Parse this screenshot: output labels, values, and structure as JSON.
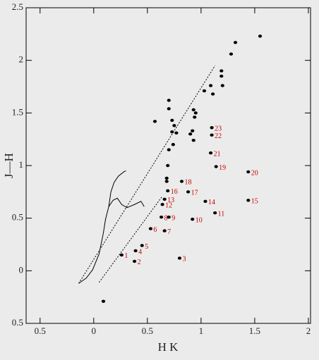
{
  "chart_data": {
    "type": "scatter",
    "x_label": "H K",
    "y_label": "J—H",
    "xlim": [
      -0.63,
      2.02
    ],
    "ylim": [
      -0.5,
      2.5
    ],
    "xticks": [
      {
        "value": -0.5,
        "label": "0.5"
      },
      0,
      0.5,
      1,
      1.5,
      2
    ],
    "yticks": [
      {
        "value": -0.5,
        "label": "0.5"
      },
      0,
      0.5,
      1,
      1.5,
      2,
      2.5
    ],
    "series": [
      {
        "color": "#000000",
        "label_color": "#cc0000",
        "labels": [
          "1",
          "2",
          "3",
          "4",
          "5",
          "6",
          "7",
          "8",
          "9",
          "10",
          "11",
          "12",
          "13",
          "14",
          "15",
          "16",
          "17",
          "18",
          "19",
          "20",
          "21",
          "22",
          "23"
        ],
        "x": [
          0.26,
          0.38,
          0.8,
          0.39,
          0.45,
          0.53,
          0.66,
          0.63,
          0.7,
          0.92,
          1.13,
          0.64,
          0.66,
          1.04,
          1.44,
          0.69,
          0.88,
          0.82,
          1.14,
          1.44,
          1.09,
          1.1,
          1.1
        ],
        "values": [
          0.15,
          0.09,
          0.12,
          0.19,
          0.24,
          0.4,
          0.38,
          0.51,
          0.51,
          0.49,
          0.55,
          0.63,
          0.68,
          0.66,
          0.67,
          0.76,
          0.75,
          0.85,
          0.99,
          0.94,
          1.12,
          1.29,
          1.36
        ]
      },
      {
        "color": "#000000",
        "x": [
          0.09,
          0.57,
          0.7,
          0.7,
          0.73,
          0.75,
          0.73,
          0.77,
          0.68,
          0.68,
          0.69,
          0.7,
          0.74,
          0.9,
          0.92,
          0.93,
          0.93,
          0.95,
          0.94,
          1.03,
          1.09,
          1.11,
          1.19,
          1.19,
          1.2,
          1.28,
          1.32,
          1.55
        ],
        "values": [
          -0.29,
          1.42,
          1.62,
          1.54,
          1.43,
          1.38,
          1.32,
          1.31,
          0.88,
          0.85,
          1.0,
          1.15,
          1.2,
          1.3,
          1.33,
          1.24,
          1.53,
          1.5,
          1.46,
          1.71,
          1.76,
          1.68,
          1.9,
          1.85,
          1.76,
          2.06,
          2.17,
          2.23
        ]
      }
    ],
    "lines": [
      {
        "dash": true,
        "x": [
          -0.14,
          1.13
        ],
        "values": [
          -0.12,
          1.95
        ]
      },
      {
        "dash": true,
        "x": [
          0.05,
          0.64
        ],
        "values": [
          -0.11,
          0.71
        ]
      },
      {
        "dash": false,
        "x": [
          -0.14,
          -0.07,
          -0.01,
          0.05,
          0.09,
          0.11,
          0.14,
          0.16,
          0.19,
          0.23,
          0.28,
          0.3
        ],
        "values": [
          -0.12,
          -0.07,
          0.01,
          0.16,
          0.36,
          0.49,
          0.61,
          0.75,
          0.84,
          0.9,
          0.94,
          0.95
        ]
      },
      {
        "dash": false,
        "x": [
          0.14,
          0.18,
          0.22,
          0.26,
          0.31,
          0.38,
          0.44,
          0.47
        ],
        "values": [
          0.61,
          0.67,
          0.69,
          0.63,
          0.6,
          0.63,
          0.66,
          0.61
        ]
      }
    ]
  }
}
